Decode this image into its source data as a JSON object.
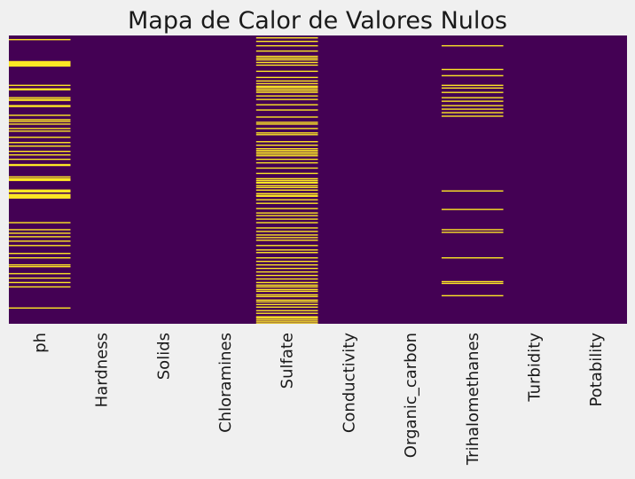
{
  "chart_data": {
    "type": "heatmap",
    "title": "Mapa de Calor de Valores Nulos",
    "columns": [
      "ph",
      "Hardness",
      "Solids",
      "Chloramines",
      "Sulfate",
      "Conductivity",
      "Organic_carbon",
      "Trihalomethanes",
      "Turbidity",
      "Potability"
    ],
    "n_rows": 3276,
    "colormap": "viridis",
    "colors": {
      "not_null": "#440154",
      "null": "#fde725",
      "background": "#f0f0f0",
      "text": "#1a1a1a"
    },
    "null_rows": {
      "ph": [
        40,
        290,
        300,
        310,
        320,
        330,
        340,
        560,
        600,
        610,
        700,
        720,
        730,
        790,
        800,
        900,
        950,
        970,
        1000,
        1050,
        1080,
        1150,
        1210,
        1250,
        1310,
        1350,
        1400,
        1460,
        1470,
        1600,
        1620,
        1630,
        1640,
        1750,
        1760,
        1770,
        1800,
        1810,
        1820,
        1830,
        1840,
        2120,
        2200,
        2240,
        2280,
        2330,
        2380,
        2470,
        2520,
        2600,
        2620,
        2700,
        2750,
        2800,
        2850,
        3090
      ],
      "Sulfate": [
        20,
        60,
        110,
        170,
        230,
        250,
        270,
        300,
        330,
        400,
        470,
        510,
        540,
        570,
        580,
        600,
        620,
        640,
        680,
        720,
        780,
        840,
        920,
        980,
        1000,
        1050,
        1100,
        1120,
        1200,
        1240,
        1280,
        1300,
        1320,
        1340,
        1360,
        1400,
        1440,
        1500,
        1560,
        1620,
        1640,
        1660,
        1670,
        1700,
        1720,
        1750,
        1790,
        1810,
        1820,
        1860,
        1900,
        1960,
        2010,
        2040,
        2080,
        2120,
        2180,
        2220,
        2260,
        2290,
        2320,
        2380,
        2430,
        2460,
        2520,
        2560,
        2600,
        2640,
        2680,
        2720,
        2760,
        2800,
        2830,
        2850,
        2880,
        2900,
        2940,
        2960,
        3000,
        3020,
        3050,
        3080,
        3120,
        3150,
        3190,
        3200,
        3220,
        3240,
        3260
      ],
      "Trihalomethanes": [
        110,
        380,
        450,
        560,
        590,
        640,
        700,
        740,
        790,
        830,
        870,
        910,
        1760,
        1970,
        2200,
        2230,
        2520,
        2790,
        2810,
        2950
      ]
    }
  }
}
